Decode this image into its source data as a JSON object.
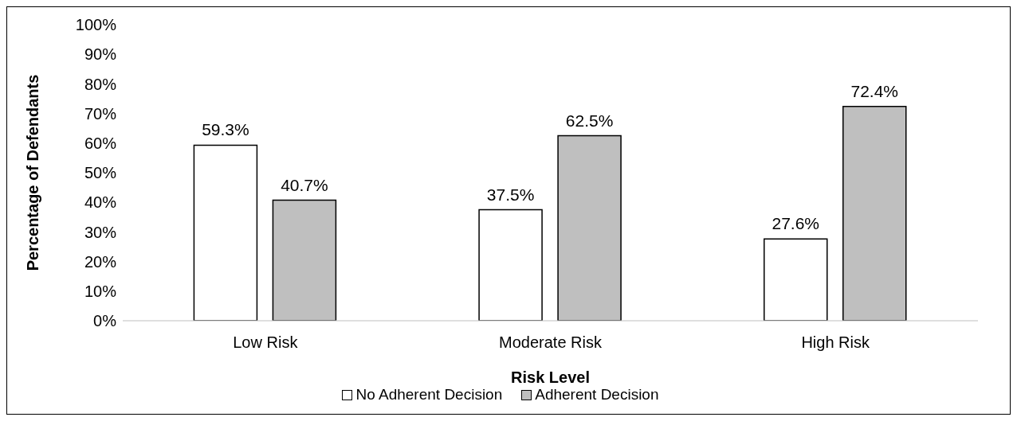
{
  "chart_data": {
    "type": "bar",
    "xlabel": "Risk Level",
    "ylabel": "Percentage of Defendants",
    "categories": [
      "Low Risk",
      "Moderate Risk",
      "High Risk"
    ],
    "series": [
      {
        "name": "No Adherent Decision",
        "color": "#ffffff",
        "values": [
          59.3,
          37.5,
          27.6
        ],
        "value_labels": [
          "59.3%",
          "37.5%",
          "27.6%"
        ]
      },
      {
        "name": "Adherent Decision",
        "color": "#bfbfbf",
        "values": [
          40.7,
          62.5,
          72.4
        ],
        "value_labels": [
          "40.7%",
          "62.5%",
          "72.4%"
        ]
      }
    ],
    "ylim": [
      0,
      100
    ],
    "yticks": [
      {
        "value": 0,
        "label": "0%"
      },
      {
        "value": 10,
        "label": "10%"
      },
      {
        "value": 20,
        "label": "20%"
      },
      {
        "value": 30,
        "label": "30%"
      },
      {
        "value": 40,
        "label": "40%"
      },
      {
        "value": 50,
        "label": "50%"
      },
      {
        "value": 60,
        "label": "60%"
      },
      {
        "value": 70,
        "label": "70%"
      },
      {
        "value": 80,
        "label": "80%"
      },
      {
        "value": 90,
        "label": "90%"
      },
      {
        "value": 100,
        "label": "100%"
      }
    ],
    "grid": false,
    "legend": "bottom"
  }
}
